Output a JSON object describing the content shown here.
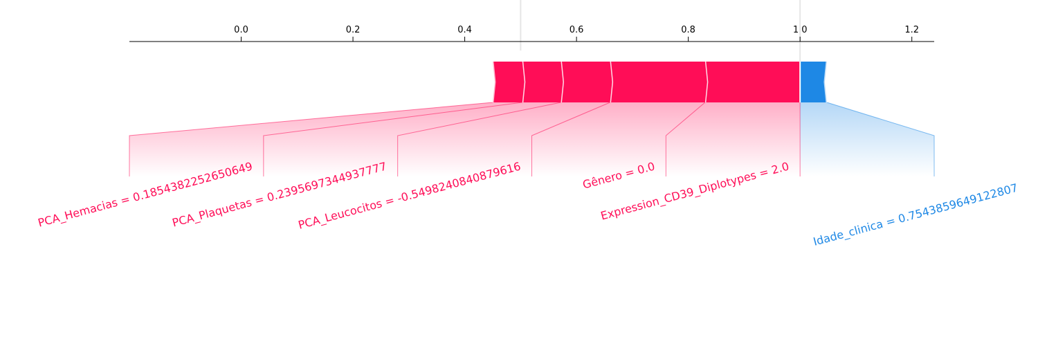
{
  "chart_data": {
    "type": "force",
    "base_value": 0.5,
    "output_value": 1.0,
    "output_label": "1.00",
    "xlim": [
      -0.2,
      1.24
    ],
    "ticks": [
      0.0,
      0.2,
      0.4,
      0.6,
      0.8,
      1.0,
      1.2
    ],
    "tick_labels": [
      "0.0",
      "0.2",
      "0.4",
      "0.6",
      "0.8",
      "1 0",
      "1.2"
    ],
    "colors": {
      "positive": "#ff0d57",
      "negative": "#1e88e5"
    },
    "positive_features": [
      {
        "label": "Expression_CD39_Diplotypes = 2.0",
        "start": 0.83,
        "end": 1.0
      },
      {
        "label": "Gênero = 0.0",
        "start": 0.66,
        "end": 0.83
      },
      {
        "label": "PCA_Leucocitos = -0.5498240840879616",
        "start": 0.572,
        "end": 0.66
      },
      {
        "label": "PCA_Plaquetas = 0.2395697344937777",
        "start": 0.503,
        "end": 0.572
      },
      {
        "label": "PCA_Hemacias = 0.1854382252650649",
        "start": 0.45,
        "end": 0.503
      }
    ],
    "negative_features": [
      {
        "label": "Idade_clinica = 0.7543859649122807",
        "start": 1.0,
        "end": 1.048
      }
    ]
  }
}
